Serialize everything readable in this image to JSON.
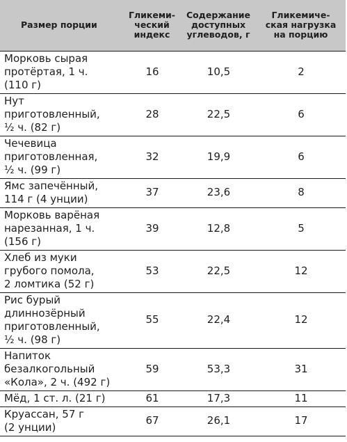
{
  "table": {
    "headers": [
      "Размер порции",
      "Гликеми-\nческий\nиндекс",
      "Содержание\nдоступных\nуглеводов, г",
      "Гликемиче-\nская нагрузка\nна порцию"
    ],
    "rows": [
      {
        "food": "Морковь сырая\nпротёртая, 1 ч.\n(110 г)",
        "gi": "16",
        "carbs": "10,5",
        "gl": "2"
      },
      {
        "food": "Нут\nприготовленный,\n½ ч. (82 г)",
        "gi": "28",
        "carbs": "22,5",
        "gl": "6"
      },
      {
        "food": "Чечевица\nприготовленная,\n½ ч. (99 г)",
        "gi": "32",
        "carbs": "19,9",
        "gl": "6"
      },
      {
        "food": "Ямс запечённый,\n114 г (4 унции)",
        "gi": "37",
        "carbs": "23,6",
        "gl": "8"
      },
      {
        "food": "Морковь варёная\nнарезанная, 1 ч.\n(156 г)",
        "gi": "39",
        "carbs": "12,8",
        "gl": "5"
      },
      {
        "food": "Хлеб из муки\nгрубого помола,\n2 ломтика (52 г)",
        "gi": "53",
        "carbs": "22,5",
        "gl": "12"
      },
      {
        "food": "Рис бурый\nдлиннозёрный\nприготовленный,\n½ ч. (98 г)",
        "gi": "55",
        "carbs": "22,4",
        "gl": "12"
      },
      {
        "food": "Напиток\nбезалкогольный\n«Кола», 2 ч. (492 г)",
        "gi": "59",
        "carbs": "53,3",
        "gl": "31"
      },
      {
        "food": "Мёд, 1 ст. л. (21 г)",
        "gi": "61",
        "carbs": "17,3",
        "gl": "11"
      },
      {
        "food": "Круассан, 57 г\n(2 унции)",
        "gi": "67",
        "carbs": "26,1",
        "gl": "17"
      }
    ]
  }
}
